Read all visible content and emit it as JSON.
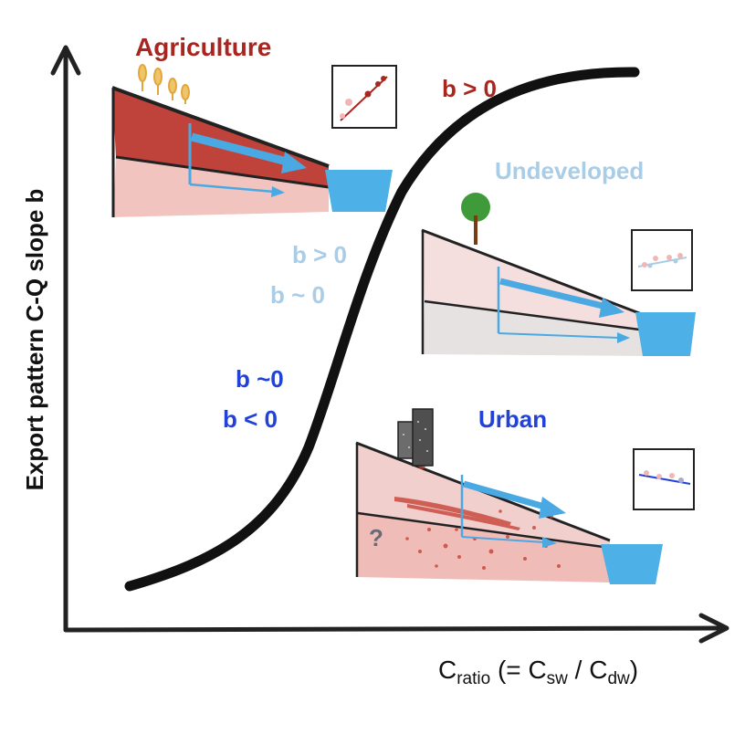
{
  "axes": {
    "y_label": "Export pattern C-Q slope b",
    "x_label_main": "C",
    "x_label_ratio_sub": "ratio",
    "x_label_rest1": " (= C",
    "x_label_sw_sub": "sw",
    "x_label_rest2": " / C",
    "x_label_dw_sub": "dw",
    "x_label_close": ")"
  },
  "panels": {
    "agriculture": {
      "title": "Agriculture",
      "slope_note": "b > 0"
    },
    "undeveloped": {
      "title": "Undeveloped",
      "slope_note_1": "b > 0",
      "slope_note_2": "b ~ 0"
    },
    "urban": {
      "title": "Urban",
      "slope_note_1": "b ~0",
      "slope_note_2": "b < 0",
      "unknown_mark": "?"
    }
  },
  "colors": {
    "agriculture": "#a8261f",
    "undeveloped": "#a9cde6",
    "urban": "#2141d8",
    "flow_arrow": "#4aa9e2",
    "stream": "#4db0e6",
    "curve": "#111111"
  },
  "icons": [
    "wheat-icon",
    "tree-icon",
    "building-icon",
    "stream-bucket-icon",
    "scatter-inset-icon"
  ]
}
